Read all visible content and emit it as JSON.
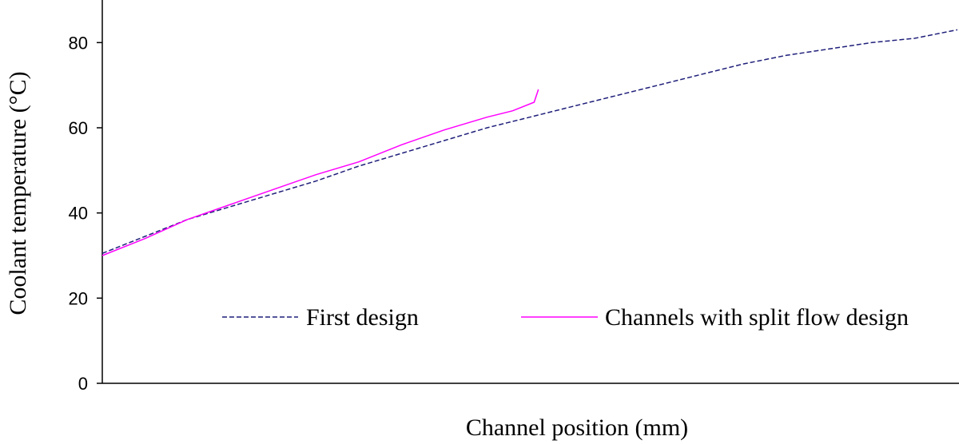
{
  "chart_data": {
    "type": "line",
    "title": "",
    "xlabel": "Channel position (mm)",
    "ylabel": "Coolant temperature (°C)",
    "ylim": [
      0,
      90
    ],
    "y_ticks": [
      0,
      20,
      40,
      60,
      80
    ],
    "x_tick_labels_shown": false,
    "grid": false,
    "legend_position": "lower-right",
    "series": [
      {
        "name": "First design",
        "color": "#1f1f7a",
        "style": "dashed",
        "x": [
          0,
          0.05,
          0.1,
          0.15,
          0.2,
          0.25,
          0.3,
          0.35,
          0.4,
          0.45,
          0.5,
          0.55,
          0.6,
          0.65,
          0.7,
          0.75,
          0.8,
          0.85,
          0.9,
          0.95,
          1.0
        ],
        "y": [
          30.5,
          34.5,
          38.5,
          41.5,
          44.5,
          47.5,
          51.0,
          54.0,
          57.0,
          60.0,
          62.5,
          65.0,
          67.5,
          70.0,
          72.5,
          75.0,
          77.0,
          78.5,
          80.0,
          81.0,
          83.0
        ]
      },
      {
        "name": "Channels with split flow design",
        "color": "#ff00ff",
        "style": "solid",
        "x": [
          0,
          0.05,
          0.1,
          0.15,
          0.2,
          0.25,
          0.3,
          0.35,
          0.4,
          0.45,
          0.48,
          0.505,
          0.51
        ],
        "y": [
          30.0,
          34.0,
          38.5,
          42.0,
          45.5,
          49.0,
          52.0,
          56.0,
          59.5,
          62.5,
          64.0,
          66.0,
          69.0
        ]
      }
    ]
  }
}
